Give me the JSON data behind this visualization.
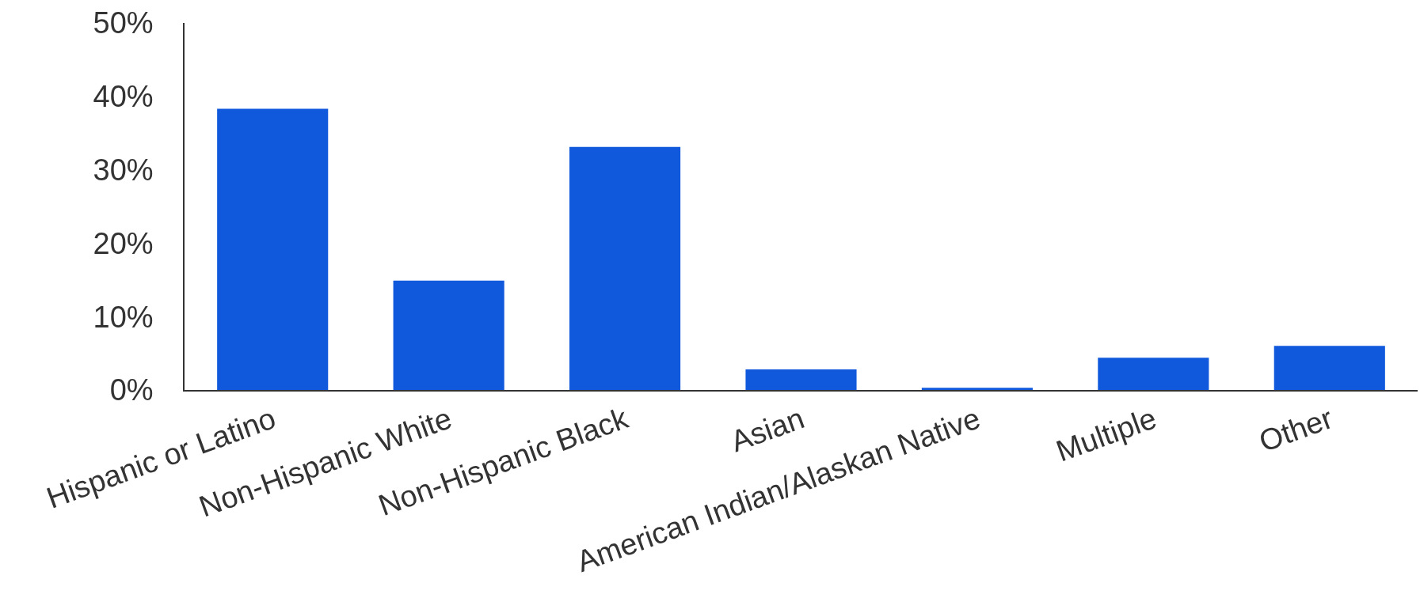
{
  "chart_data": {
    "type": "bar",
    "categories": [
      "Hispanic or Latino",
      "Non-Hispanic White",
      "Non-Hispanic Black",
      "Asian",
      "American Indian/Alaskan Native",
      "Multiple",
      "Other"
    ],
    "values": [
      38.3,
      14.9,
      33.1,
      2.8,
      0.3,
      4.4,
      6.0
    ],
    "color": "#1059dc",
    "ylim": [
      0,
      50
    ],
    "yticks": [
      {
        "value": 0,
        "label": "0%"
      },
      {
        "value": 10,
        "label": "10%"
      },
      {
        "value": 20,
        "label": "20%"
      },
      {
        "value": 30,
        "label": "30%"
      },
      {
        "value": 40,
        "label": "40%"
      },
      {
        "value": 50,
        "label": "50%"
      }
    ],
    "legend": false
  }
}
